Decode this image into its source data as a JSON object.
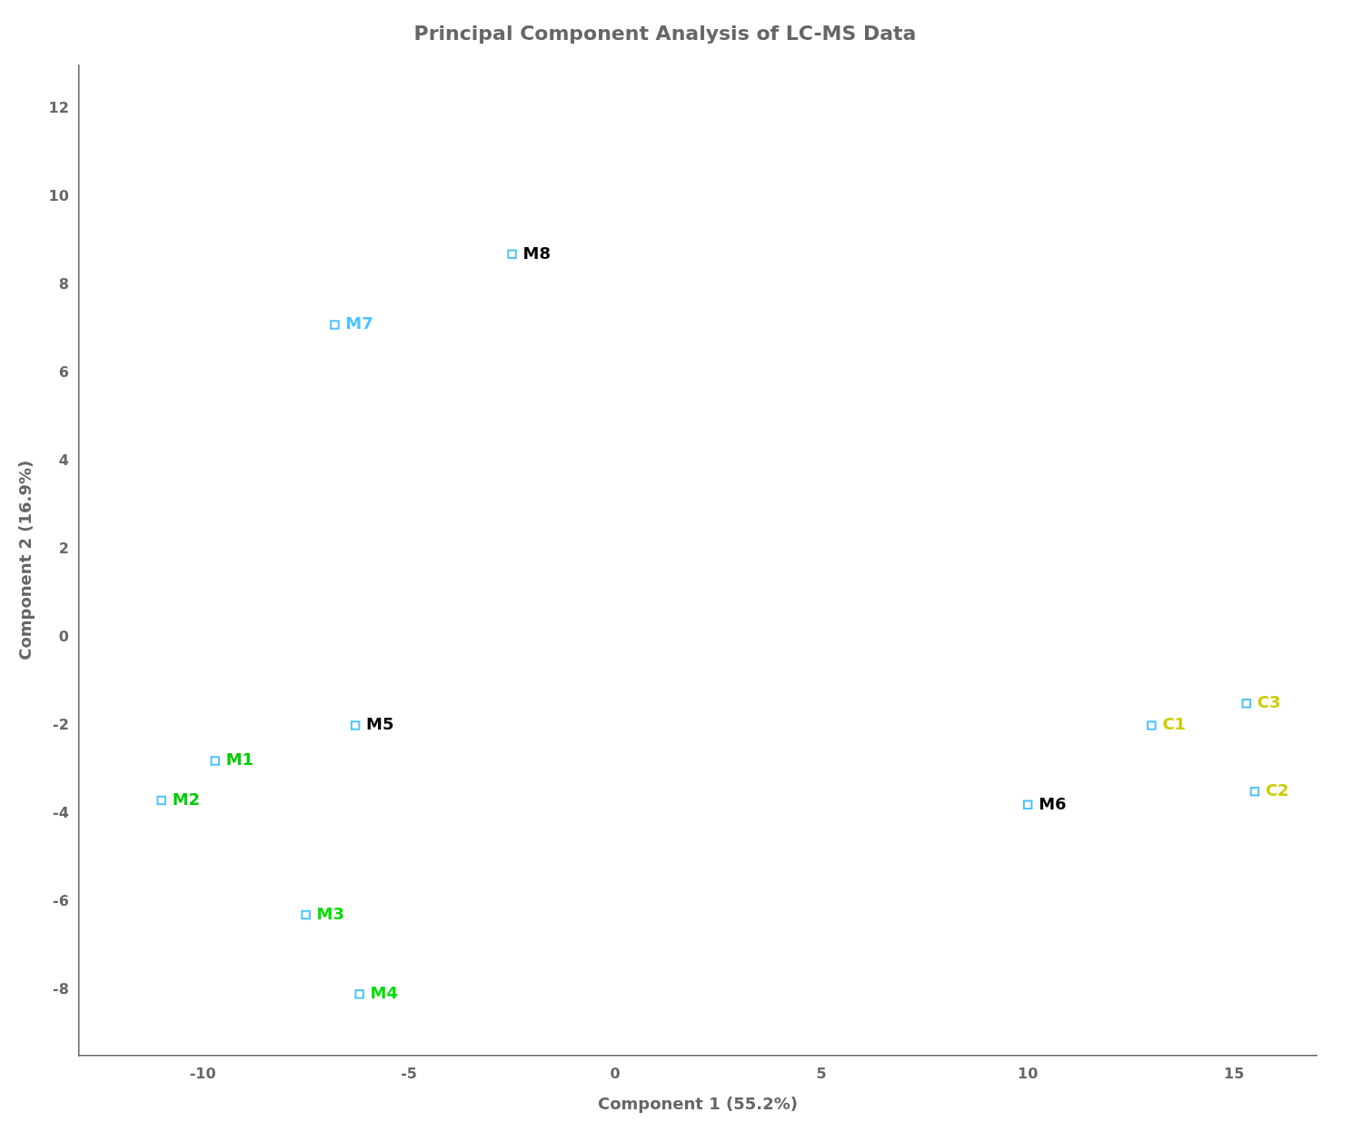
{
  "chart_data": {
    "type": "scatter",
    "title": "Principal Component Analysis of LC-MS Data",
    "xlabel": "Component 1 (55.2%)",
    "ylabel": "Component 2 (16.9%)",
    "xlim": [
      -13,
      17
    ],
    "ylim": [
      -9.5,
      13
    ],
    "xticks": [
      -10,
      -5,
      0,
      5,
      10,
      15
    ],
    "yticks": [
      -8,
      -6,
      -4,
      -2,
      0,
      2,
      4,
      6,
      8,
      10,
      12
    ],
    "grid": false,
    "marker": "square",
    "color": "#4DC3FF",
    "x": [
      -9.7,
      -11.0,
      -7.5,
      -6.2,
      -6.3,
      10.0,
      -6.8,
      -2.5,
      13.0,
      15.5,
      15.3
    ],
    "values": [
      -2.8,
      -3.7,
      -6.3,
      -8.1,
      -2.0,
      -3.8,
      7.1,
      8.7,
      -2.0,
      -3.5,
      -1.5
    ],
    "point_labels": [
      "M1",
      "M2",
      "M3",
      "M4",
      "M5",
      "M6",
      "M7",
      "M8",
      "C1",
      "C2",
      "C3"
    ],
    "label_colors": [
      "#00CC00",
      "#00CC00",
      "#00DD00",
      "#00DD00",
      "#000000",
      "#000000",
      "#4DC3FF",
      "#000000",
      "#CCCC00",
      "#CCCC00",
      "#CCCC00"
    ]
  }
}
